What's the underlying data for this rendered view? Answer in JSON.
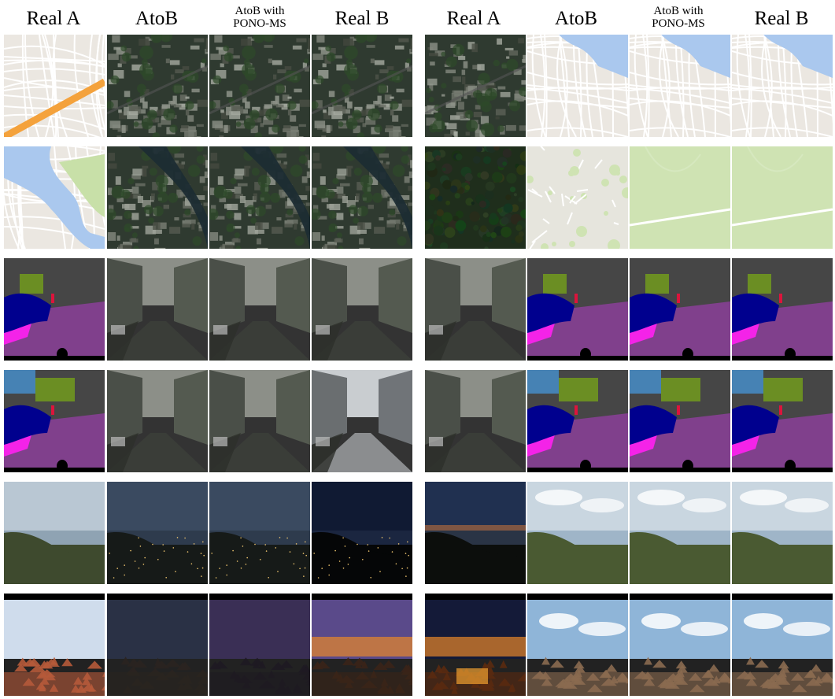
{
  "headers": {
    "left": [
      {
        "label": "Real A"
      },
      {
        "label": "AtoB"
      },
      {
        "label_line1": "AtoB with",
        "label_line2": "PONO-MS"
      },
      {
        "label": "Real B"
      }
    ],
    "right": [
      {
        "label": "Real A"
      },
      {
        "label": "AtoB"
      },
      {
        "label_line1": "AtoB with",
        "label_line2": "PONO-MS"
      },
      {
        "label": "Real B"
      }
    ]
  },
  "rows": [
    {
      "left_kind": [
        "map",
        "aerial",
        "aerial",
        "aerial"
      ],
      "right_kind": [
        "aerial",
        "map",
        "map",
        "map"
      ]
    },
    {
      "left_kind": [
        "map-river",
        "aerial-river",
        "aerial-river",
        "aerial-river"
      ],
      "right_kind": [
        "forest",
        "map-light",
        "map-green",
        "map-green"
      ]
    },
    {
      "left_kind": [
        "seg",
        "street",
        "street",
        "street"
      ],
      "right_kind": [
        "street",
        "seg",
        "seg",
        "seg"
      ]
    },
    {
      "left_kind": [
        "seg2",
        "street2",
        "street2",
        "street-bright"
      ],
      "right_kind": [
        "street2",
        "seg2",
        "seg2",
        "seg2"
      ]
    },
    {
      "left_kind": [
        "day-landscape",
        "night-landscape",
        "night-landscape",
        "night-dark"
      ],
      "right_kind": [
        "dusk",
        "day-clouds",
        "day-clouds",
        "day-clouds"
      ]
    },
    {
      "left_kind": [
        "town-day",
        "town-night",
        "town-night2",
        "town-sunset"
      ],
      "right_kind": [
        "town-sunset-night",
        "town-day2",
        "town-day2",
        "town-day2"
      ]
    }
  ],
  "colors": {
    "map_bg": "#ebe7e1",
    "map_road": "#ffffff",
    "map_water": "#aac8ee",
    "map_park": "#c8e0a8",
    "highway": "#f4a23c",
    "aerial_dark": "#2f3a30",
    "seg_sky": "#4682b4",
    "seg_building": "#464646",
    "seg_road": "#80408c",
    "seg_sidewalk": "#f423e8",
    "seg_car": "#00008e",
    "seg_vegetation": "#6b8e23",
    "seg_person": "#dc143c"
  }
}
